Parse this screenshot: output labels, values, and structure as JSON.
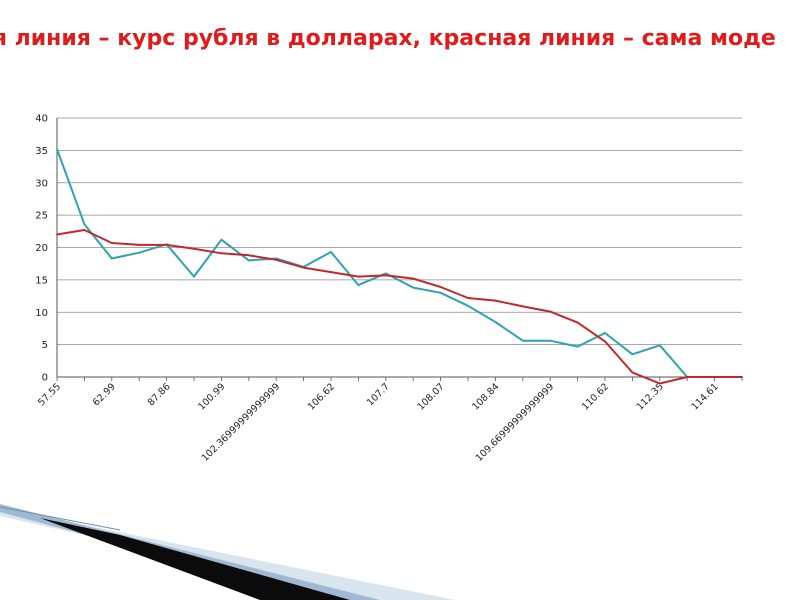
{
  "slide": {
    "title": "ая линия – курс рубля в долларах, красная линия – сама моде"
  },
  "colors": {
    "title": "#e11b1b",
    "series_actual": "#2fa2b2",
    "series_model": "#c0282d",
    "grid": "#8c8c8c",
    "axis": "#555555",
    "decor_dark": "#0b0b0b",
    "decor_blue": "#9fb8d3",
    "decor_light": "#d8e4ee"
  },
  "chart_data": {
    "type": "line",
    "title": "",
    "xlabel": "",
    "ylabel": "",
    "ylim": [
      0,
      40
    ],
    "yticks": [
      0,
      5,
      10,
      15,
      20,
      25,
      30,
      35,
      40
    ],
    "grid": true,
    "legend": "none",
    "xtick_labels": [
      {
        "index": 0,
        "label": "57.55"
      },
      {
        "index": 2,
        "label": "62.99"
      },
      {
        "index": 4,
        "label": "87.86"
      },
      {
        "index": 6,
        "label": "100.99"
      },
      {
        "index": 8,
        "label": "102.36999999999999"
      },
      {
        "index": 10,
        "label": "106.62"
      },
      {
        "index": 12,
        "label": "107.7"
      },
      {
        "index": 14,
        "label": "108.07"
      },
      {
        "index": 16,
        "label": "108.84"
      },
      {
        "index": 18,
        "label": "109.66999999999999"
      },
      {
        "index": 20,
        "label": "110.62"
      },
      {
        "index": 22,
        "label": "112.35"
      },
      {
        "index": 24,
        "label": "114.61"
      }
    ],
    "series": [
      {
        "color": "#2fa2b2",
        "values": [
          35.2,
          23.6,
          18.3,
          19.2,
          20.5,
          15.5,
          21.2,
          18.0,
          18.3,
          17.0,
          19.3,
          14.2,
          16.0,
          13.8,
          13.0,
          11.0,
          8.5,
          5.6,
          5.6,
          4.7,
          6.8,
          3.5,
          4.9,
          0,
          0,
          0
        ]
      },
      {
        "color": "#c0282d",
        "values": [
          22.0,
          22.7,
          20.7,
          20.4,
          20.4,
          19.8,
          19.1,
          18.8,
          18.1,
          16.9,
          16.2,
          15.5,
          15.7,
          15.2,
          13.9,
          12.2,
          11.8,
          10.9,
          10.1,
          8.4,
          5.5,
          0.7,
          -1.0,
          0,
          0,
          0
        ]
      }
    ]
  }
}
